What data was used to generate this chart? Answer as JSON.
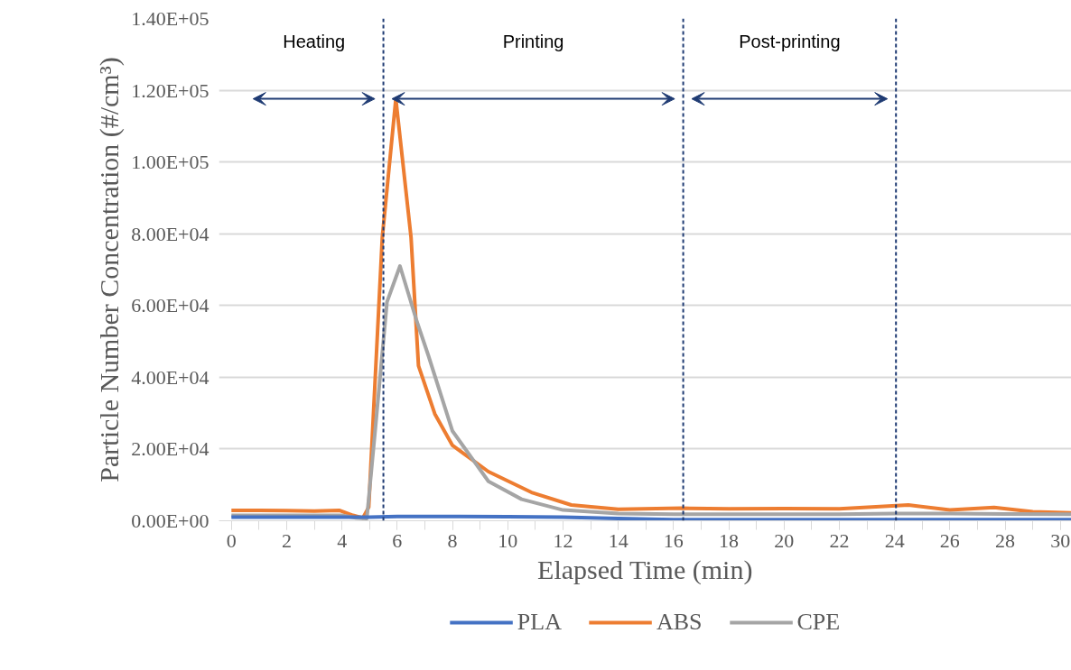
{
  "chart_data": {
    "type": "line",
    "xlabel": "Elapsed Time (min)",
    "ylabel": "Particle Number Concentration (#/cm³)",
    "xlim": [
      -0.45,
      30.4
    ],
    "xticks": [
      0,
      2,
      4,
      6,
      8,
      10,
      12,
      14,
      16,
      18,
      20,
      22,
      24,
      26,
      28,
      30
    ],
    "ylim": [
      0,
      140000
    ],
    "yticks": [
      {
        "value": 0,
        "label": "0.00E+00"
      },
      {
        "value": 20000,
        "label": "2.00E+04"
      },
      {
        "value": 40000,
        "label": "4.00E+04"
      },
      {
        "value": 60000,
        "label": "6.00E+04"
      },
      {
        "value": 80000,
        "label": "8.00E+04"
      },
      {
        "value": 100000,
        "label": "1.00E+05"
      },
      {
        "value": 120000,
        "label": "1.20E+05"
      },
      {
        "value": 140000,
        "label": "1.40E+05"
      }
    ],
    "grid": "y",
    "legend": "bottom",
    "line_style": "solid",
    "marker": "none",
    "series": [
      {
        "name": "PLA",
        "color": "#4472c4",
        "x": [
          0,
          2,
          4,
          5,
          6,
          8,
          10,
          12,
          14,
          16,
          18,
          20,
          22,
          24,
          26,
          28,
          30.4
        ],
        "values": [
          1000,
          1000,
          1000,
          1000,
          1200,
          1200,
          1100,
          1000,
          600,
          300,
          300,
          300,
          300,
          300,
          300,
          300,
          300
        ]
      },
      {
        "name": "ABS",
        "color": "#ed7d31",
        "x": [
          0,
          1,
          2,
          3,
          3.9,
          4.4,
          4.76,
          4.97,
          5.46,
          5.95,
          6.5,
          6.77,
          7.36,
          8,
          9.3,
          10.86,
          12.3,
          14,
          16.3,
          18,
          20,
          22,
          24.5,
          26,
          27.6,
          29,
          30.4
        ],
        "values": [
          2900,
          2900,
          2800,
          2700,
          2900,
          1500,
          800,
          3800,
          79000,
          117600,
          79000,
          43200,
          29800,
          21000,
          13700,
          7900,
          4400,
          3200,
          3500,
          3300,
          3400,
          3300,
          4400,
          3000,
          3700,
          2500,
          2200
        ]
      },
      {
        "name": "CPE",
        "color": "#a5a5a5",
        "x": [
          0,
          1,
          2,
          3,
          4,
          4.5,
          4.9,
          5.2,
          5.63,
          6.1,
          6.7,
          7.13,
          8,
          9.3,
          10.5,
          12,
          14,
          16,
          18,
          20,
          22,
          24,
          26,
          28,
          30.4
        ],
        "values": [
          1500,
          1500,
          1500,
          1500,
          1500,
          800,
          600,
          25000,
          61000,
          71000,
          55800,
          46000,
          25000,
          11000,
          6000,
          3000,
          2000,
          1800,
          1800,
          1800,
          1800,
          2000,
          2000,
          1900,
          1800
        ]
      }
    ],
    "ref_lines": [
      {
        "axis": "x",
        "value": 5.5,
        "color": "#1f3b73",
        "line_style": "dashed"
      },
      {
        "axis": "x",
        "value": 16.35,
        "color": "#1f3b73",
        "line_style": "dashed"
      },
      {
        "axis": "x",
        "value": 24.05,
        "color": "#1f3b73",
        "line_style": "dashed"
      }
    ],
    "annotations": [
      "Heating",
      "Printing",
      "Post-printing"
    ]
  }
}
